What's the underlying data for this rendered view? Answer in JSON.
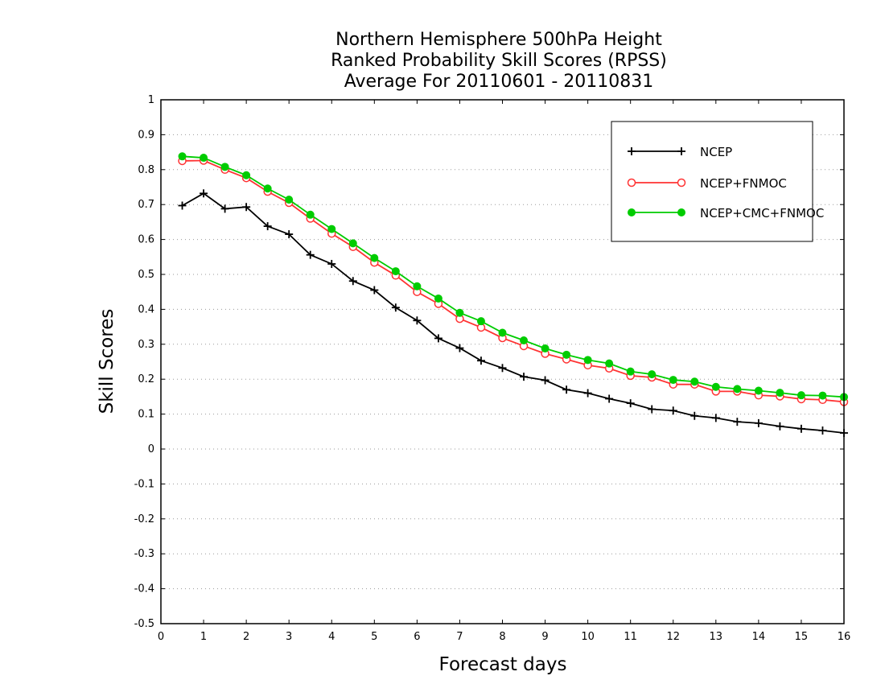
{
  "chart_data": {
    "type": "line",
    "title": [
      "Northern Hemisphere 500hPa Height",
      "Ranked Probability Skill Scores (RPSS)",
      "Average For 20110601 - 20110831"
    ],
    "xlabel": "Forecast days",
    "ylabel": "Skill Scores",
    "xlim": [
      0,
      16
    ],
    "ylim": [
      -0.5,
      1
    ],
    "xticks": [
      "0",
      "1",
      "2",
      "3",
      "4",
      "5",
      "6",
      "7",
      "8",
      "9",
      "10",
      "11",
      "12",
      "13",
      "14",
      "15",
      "16"
    ],
    "yticks": [
      "1",
      "0.9",
      "0.8",
      "0.7",
      "0.6",
      "0.5",
      "0.4",
      "0.3",
      "0.2",
      "0.1",
      "0",
      "-0.1",
      "-0.2",
      "-0.3",
      "-0.4",
      "-0.5"
    ],
    "grid": true,
    "legend_position": "top-right",
    "x": [
      0.5,
      1,
      1.5,
      2,
      2.5,
      3,
      3.5,
      4,
      4.5,
      5,
      5.5,
      6,
      6.5,
      7,
      7.5,
      8,
      8.5,
      9,
      9.5,
      10,
      10.5,
      11,
      11.5,
      12,
      12.5,
      13,
      13.5,
      14,
      14.5,
      15,
      15.5,
      16
    ],
    "series": [
      {
        "name": "NCEP",
        "color": "#000000",
        "marker": "plus",
        "values": [
          0.697,
          0.732,
          0.688,
          0.693,
          0.638,
          0.615,
          0.556,
          0.53,
          0.481,
          0.455,
          0.405,
          0.368,
          0.317,
          0.289,
          0.253,
          0.232,
          0.207,
          0.197,
          0.17,
          0.16,
          0.144,
          0.131,
          0.114,
          0.11,
          0.095,
          0.089,
          0.078,
          0.074,
          0.065,
          0.058,
          0.053,
          0.046
        ]
      },
      {
        "name": "NCEP+FNMOC",
        "color": "#ff3333",
        "marker": "open-circle",
        "values": [
          0.825,
          0.826,
          0.8,
          0.776,
          0.737,
          0.705,
          0.66,
          0.617,
          0.579,
          0.534,
          0.497,
          0.45,
          0.416,
          0.373,
          0.348,
          0.318,
          0.295,
          0.273,
          0.257,
          0.24,
          0.231,
          0.21,
          0.205,
          0.185,
          0.185,
          0.165,
          0.165,
          0.154,
          0.151,
          0.143,
          0.141,
          0.135
        ]
      },
      {
        "name": "NCEP+CMC+FNMOC",
        "color": "#00cc00",
        "marker": "filled-circle",
        "values": [
          0.838,
          0.834,
          0.808,
          0.784,
          0.746,
          0.714,
          0.671,
          0.63,
          0.589,
          0.547,
          0.509,
          0.466,
          0.431,
          0.39,
          0.366,
          0.333,
          0.311,
          0.288,
          0.27,
          0.255,
          0.245,
          0.222,
          0.214,
          0.198,
          0.193,
          0.178,
          0.172,
          0.167,
          0.161,
          0.154,
          0.153,
          0.149
        ]
      }
    ]
  }
}
